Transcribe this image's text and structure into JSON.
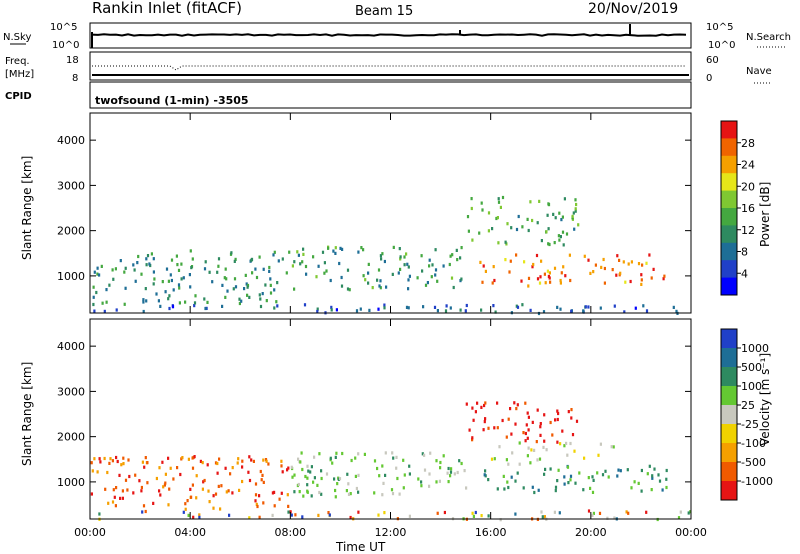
{
  "header": {
    "station": "Rankin Inlet (fitACF)",
    "beam": "Beam 15",
    "date": "20/Nov/2019"
  },
  "summary_panels": {
    "nsky": {
      "label": "N.Sky",
      "ticks": [
        "10^5",
        "10^0"
      ]
    },
    "nsearch": {
      "label": "N.Search",
      "ticks": [
        "10^5",
        "10^0"
      ]
    },
    "freq": {
      "label_line1": "Freq.",
      "label_line2": "[MHz]",
      "ticks": [
        "18",
        "8"
      ]
    },
    "nave": {
      "label": "Nave",
      "ticks": [
        "60",
        "0"
      ]
    },
    "cpid": {
      "label": "CPID",
      "value": "twofsound (1-min) -3505"
    }
  },
  "chart_data": [
    {
      "type": "heatmap",
      "title": "Power",
      "ylabel": "Slant Range [km]",
      "xlabel": "Time UT",
      "x_ticks": [
        "00:00",
        "04:00",
        "08:00",
        "12:00",
        "16:00",
        "20:00",
        "00:00"
      ],
      "y_ticks": [
        1000,
        2000,
        3000,
        4000
      ],
      "ylim": [
        180,
        4600
      ],
      "xlim_hours": [
        0,
        24
      ],
      "colorbar": {
        "label": "Power [dB]",
        "ticks": [
          "28",
          "24",
          "20",
          "16",
          "12",
          "8",
          "4"
        ],
        "range": [
          0,
          30
        ],
        "colors": [
          "#0000ff",
          "#2040c8",
          "#1e6e96",
          "#2e8a60",
          "#44a840",
          "#7fc832",
          "#e6e619",
          "#f5a000",
          "#f06400",
          "#e61414"
        ]
      },
      "features": [
        {
          "name": "near-range band",
          "time_hours": [
            0,
            24
          ],
          "range_km": [
            200,
            400
          ],
          "level_db": 6
        },
        {
          "name": "morning patches",
          "time_hours": [
            0,
            8
          ],
          "range_km": [
            400,
            1600
          ],
          "level_db": 10
        },
        {
          "name": "midday echoes",
          "time_hours": [
            8,
            15
          ],
          "range_km": [
            700,
            1700
          ],
          "level_db": 11
        },
        {
          "name": "evening strong band",
          "time_hours": [
            15.5,
            23
          ],
          "range_km": [
            800,
            1500
          ],
          "level_db": 26
        },
        {
          "name": "far-range echoes",
          "time_hours": [
            15,
            19.5
          ],
          "range_km": [
            1700,
            2800
          ],
          "level_db": 13
        }
      ]
    },
    {
      "type": "heatmap",
      "title": "Velocity",
      "ylabel": "Slant Range [km]",
      "xlabel": "Time UT",
      "x_ticks": [
        "00:00",
        "04:00",
        "08:00",
        "12:00",
        "16:00",
        "20:00",
        "00:00"
      ],
      "y_ticks": [
        1000,
        2000,
        3000,
        4000
      ],
      "ylim": [
        180,
        4600
      ],
      "xlim_hours": [
        0,
        24
      ],
      "colorbar": {
        "label": "Velocity [m s⁻¹]",
        "ticks": [
          "1000",
          "500",
          "100",
          "25",
          "-25",
          "-100",
          "-500",
          "-1000"
        ],
        "colors": [
          "#e61414",
          "#f05a00",
          "#f5a000",
          "#f0d200",
          "#c8c8be",
          "#64c832",
          "#2e8a60",
          "#1e6e96",
          "#2040c8"
        ]
      },
      "features": [
        {
          "name": "near-range band",
          "time_hours": [
            0,
            24
          ],
          "range_km": [
            200,
            400
          ],
          "velocity": "mixed"
        },
        {
          "name": "morning patches",
          "time_hours": [
            0,
            8
          ],
          "range_km": [
            400,
            1600
          ],
          "velocity": -300
        },
        {
          "name": "midday echoes",
          "time_hours": [
            8,
            15
          ],
          "range_km": [
            700,
            1700
          ],
          "velocity": 200
        },
        {
          "name": "evening band",
          "time_hours": [
            15.5,
            23
          ],
          "range_km": [
            800,
            1400
          ],
          "velocity": 300
        },
        {
          "name": "ground scatter",
          "time_hours": [
            16,
            21
          ],
          "range_km": [
            1400,
            1900
          ],
          "velocity": 0
        },
        {
          "name": "far-range echoes",
          "time_hours": [
            15,
            19.5
          ],
          "range_km": [
            1900,
            2800
          ],
          "velocity": -700
        }
      ]
    }
  ]
}
